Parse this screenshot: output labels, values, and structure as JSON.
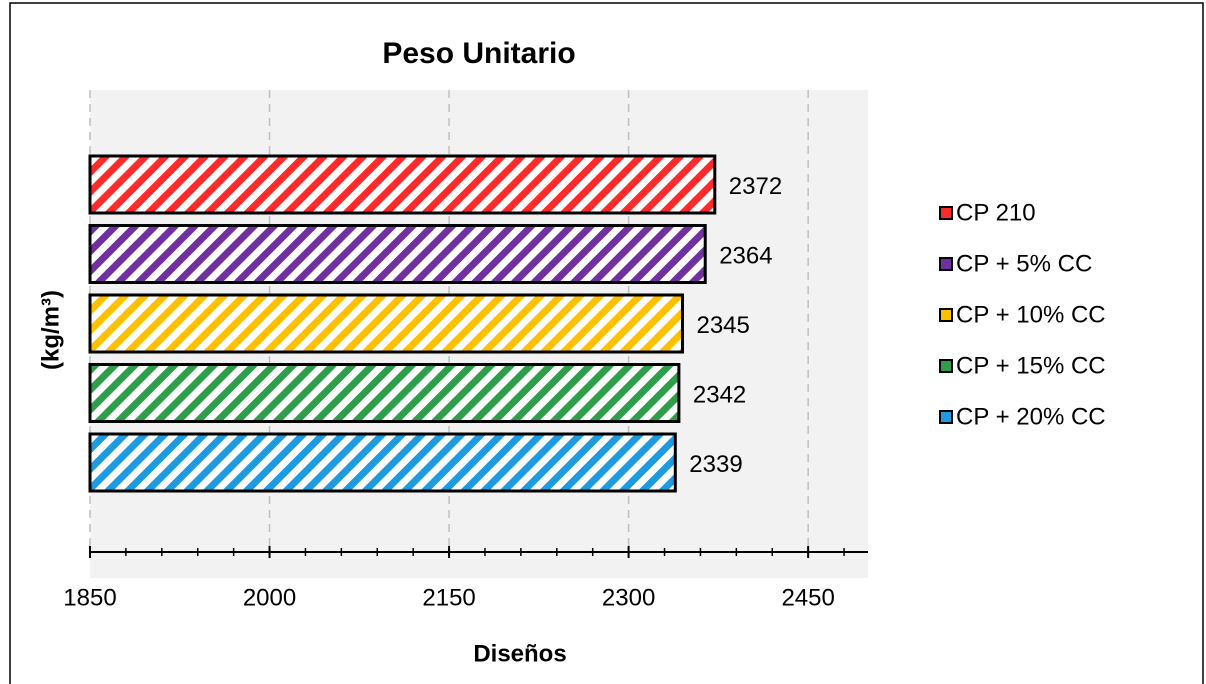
{
  "chart_data": {
    "type": "bar",
    "orientation": "horizontal",
    "title": "Peso Unitario",
    "x_label": "Diseños",
    "y_label": "(kg/m³)",
    "series": [
      {
        "name": "CP 210",
        "color": "#ff2a2a",
        "values": [
          2372
        ]
      },
      {
        "name": "CP + 5% CC",
        "color": "#7030a0",
        "values": [
          2364
        ]
      },
      {
        "name": "CP + 10% CC",
        "color": "#ffc000",
        "values": [
          2345
        ]
      },
      {
        "name": "CP + 15% CC",
        "color": "#2e9e4a",
        "values": [
          2342
        ]
      },
      {
        "name": "CP + 20% CC",
        "color": "#1e9be0",
        "values": [
          2339
        ]
      }
    ],
    "xlim": [
      1850,
      2500
    ],
    "xticks": [
      1850,
      2000,
      2150,
      2300,
      2450
    ],
    "grid": true,
    "legend": "right"
  }
}
